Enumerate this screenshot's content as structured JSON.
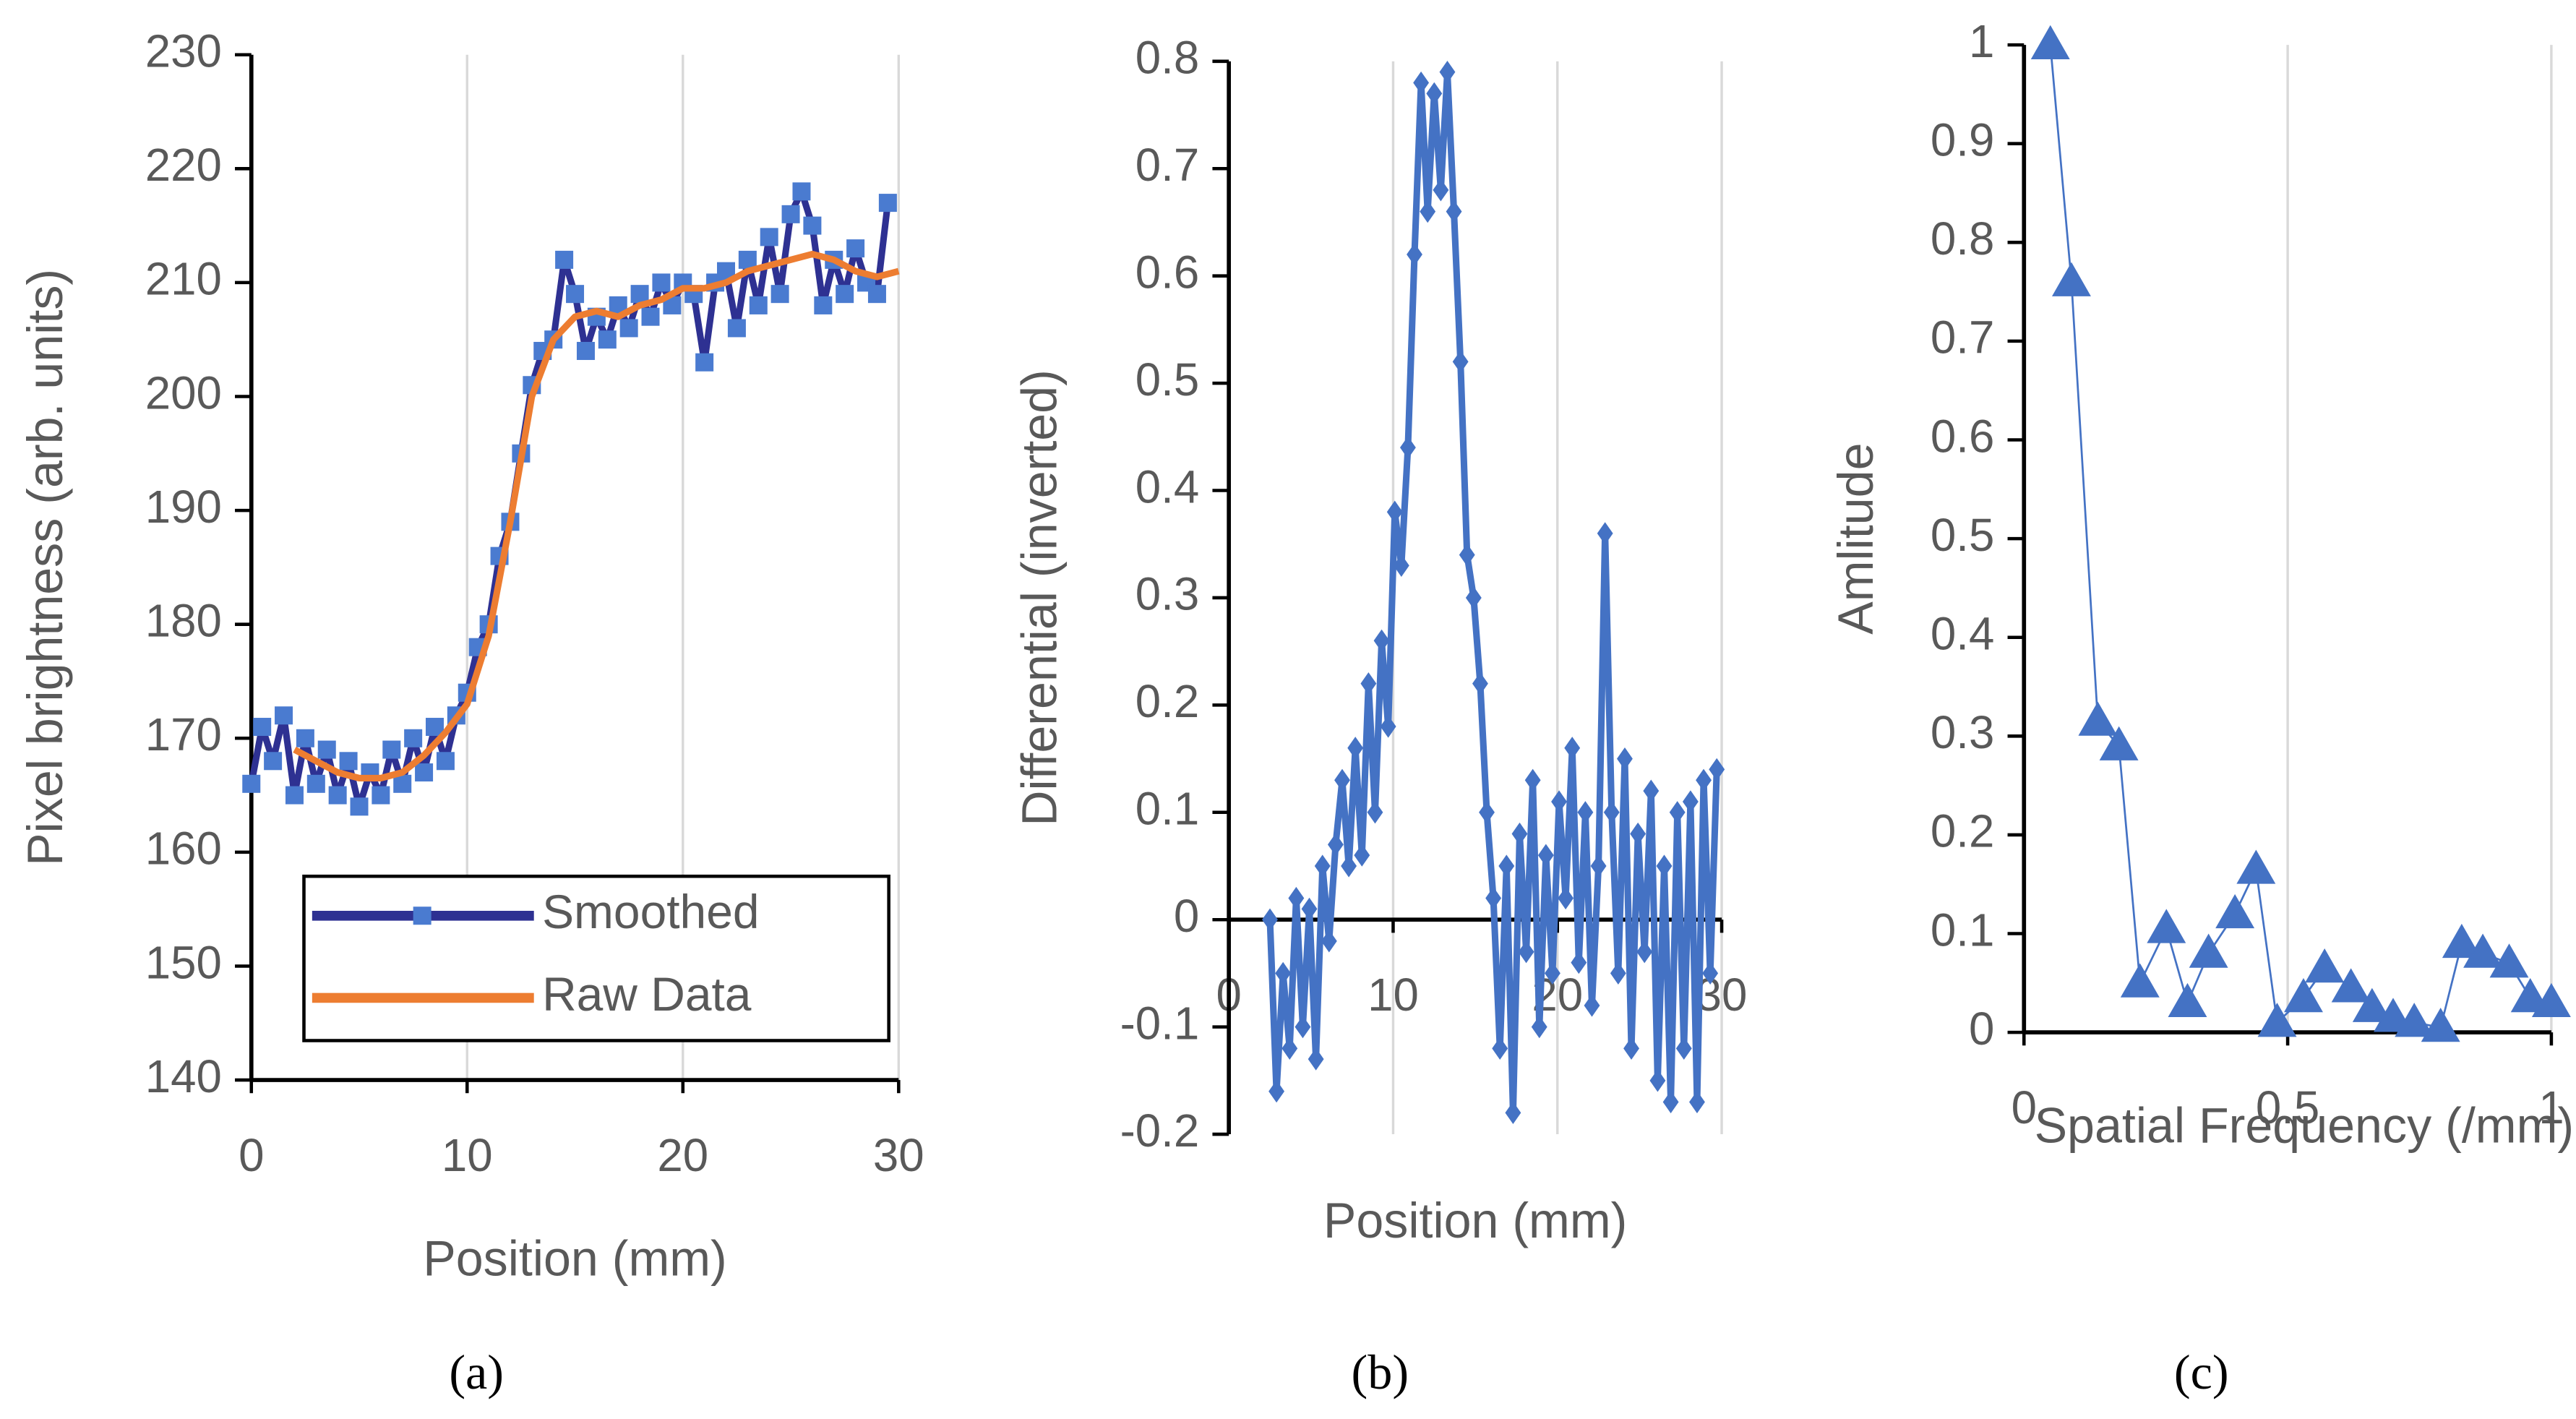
{
  "chart_data": [
    {
      "type": "line",
      "caption": "(a)",
      "xlabel": "Position (mm)",
      "ylabel": "Pixel brightness (arb. units)",
      "xlim": [
        0,
        30
      ],
      "xticks": [
        0,
        10,
        20,
        30
      ],
      "ylim": [
        140,
        230
      ],
      "yticks": [
        140,
        150,
        160,
        170,
        180,
        190,
        200,
        210,
        220,
        230
      ],
      "grid": "x",
      "legend": "lower right",
      "series": [
        {
          "name": "Smoothed",
          "color": "#2e3192",
          "marker_color": "#4a7bd0",
          "marker": "square",
          "x": [
            0,
            0.5,
            1,
            1.5,
            2,
            2.5,
            3,
            3.5,
            4,
            4.5,
            5,
            5.5,
            6,
            6.5,
            7,
            7.5,
            8,
            8.5,
            9,
            9.5,
            10,
            10.5,
            11,
            11.5,
            12,
            12.5,
            13,
            13.5,
            14,
            14.5,
            15,
            15.5,
            16,
            16.5,
            17,
            17.5,
            18,
            18.5,
            19,
            19.5,
            20,
            20.5,
            21,
            21.5,
            22,
            22.5,
            23,
            23.5,
            24,
            24.5,
            25,
            25.5,
            26,
            26.5,
            27,
            27.5,
            28,
            28.5,
            29,
            29.5
          ],
          "values": [
            166,
            171,
            168,
            172,
            165,
            170,
            166,
            169,
            165,
            168,
            164,
            167,
            165,
            169,
            166,
            170,
            167,
            171,
            168,
            172,
            174,
            178,
            180,
            186,
            189,
            195,
            201,
            204,
            205,
            212,
            209,
            204,
            207,
            205,
            208,
            206,
            209,
            207,
            210,
            208,
            210,
            209,
            203,
            210,
            211,
            206,
            212,
            208,
            214,
            209,
            216,
            218,
            215,
            208,
            212,
            209,
            213,
            210,
            209,
            217
          ]
        },
        {
          "name": "Raw Data",
          "color": "#ed7d31",
          "marker": "none",
          "x": [
            2,
            3,
            4,
            5,
            6,
            7,
            8,
            9,
            10,
            11,
            12,
            13,
            14,
            15,
            16,
            17,
            18,
            19,
            20,
            21,
            22,
            23,
            24,
            25,
            26,
            27,
            28,
            29,
            30
          ],
          "values": [
            169,
            168,
            167,
            166.5,
            166.5,
            167,
            168.5,
            170.5,
            173,
            179,
            189,
            200,
            205,
            207,
            207.5,
            207,
            208,
            208.5,
            209.5,
            209.5,
            210,
            211,
            211.5,
            212,
            212.5,
            212,
            211,
            210.5,
            211
          ]
        }
      ]
    },
    {
      "type": "line",
      "caption": "(b)",
      "xlabel": "Position (mm)",
      "ylabel": "Differential (inverted)",
      "xlim": [
        0,
        30
      ],
      "xticks": [
        0,
        10,
        20,
        30
      ],
      "ylim": [
        -0.2,
        0.8
      ],
      "yticks": [
        -0.2,
        -0.1,
        0,
        0.1,
        0.2,
        0.3,
        0.4,
        0.5,
        0.6,
        0.7,
        0.8
      ],
      "grid": "x",
      "series": [
        {
          "color": "#4472c4",
          "marker_color": "#4472c4",
          "marker": "diamond",
          "x": [
            2.5,
            2.9,
            3.3,
            3.7,
            4.1,
            4.5,
            4.9,
            5.3,
            5.7,
            6.1,
            6.5,
            6.9,
            7.3,
            7.7,
            8.1,
            8.5,
            8.9,
            9.3,
            9.7,
            10.1,
            10.5,
            10.9,
            11.3,
            11.7,
            12.1,
            12.5,
            12.9,
            13.3,
            13.7,
            14.1,
            14.5,
            14.9,
            15.3,
            15.7,
            16.1,
            16.5,
            16.9,
            17.3,
            17.7,
            18.1,
            18.5,
            18.9,
            19.3,
            19.7,
            20.1,
            20.5,
            20.9,
            21.3,
            21.7,
            22.1,
            22.5,
            22.9,
            23.3,
            23.7,
            24.1,
            24.5,
            24.9,
            25.3,
            25.7,
            26.1,
            26.5,
            26.9,
            27.3,
            27.7,
            28.1,
            28.5,
            28.9,
            29.3,
            29.7
          ],
          "values": [
            0,
            -0.16,
            -0.05,
            -0.12,
            0.02,
            -0.1,
            0.01,
            -0.13,
            0.05,
            -0.02,
            0.07,
            0.13,
            0.05,
            0.16,
            0.06,
            0.22,
            0.1,
            0.26,
            0.18,
            0.38,
            0.33,
            0.44,
            0.62,
            0.78,
            0.66,
            0.77,
            0.68,
            0.79,
            0.66,
            0.52,
            0.34,
            0.3,
            0.22,
            0.1,
            0.02,
            -0.12,
            0.05,
            -0.18,
            0.08,
            -0.03,
            0.13,
            -0.1,
            0.06,
            -0.05,
            0.11,
            0.02,
            0.16,
            -0.04,
            0.1,
            -0.08,
            0.05,
            0.36,
            0.1,
            -0.05,
            0.15,
            -0.12,
            0.08,
            -0.03,
            0.12,
            -0.15,
            0.05,
            -0.17,
            0.1,
            -0.12,
            0.11,
            -0.17,
            0.13,
            -0.05,
            0.14
          ]
        }
      ]
    },
    {
      "type": "line",
      "caption": "(c)",
      "xlabel": "Spatial Frequency (/mm)",
      "ylabel": "Amlitude",
      "xlim": [
        0,
        1
      ],
      "xticks": [
        0,
        0.5,
        1
      ],
      "ylim": [
        0,
        1
      ],
      "yticks": [
        0,
        0.1,
        0.2,
        0.3,
        0.4,
        0.5,
        0.6,
        0.7,
        0.8,
        0.9,
        1
      ],
      "grid": "x",
      "series": [
        {
          "color": "#4472c4",
          "marker_color": "#4472c4",
          "marker": "triangle",
          "x": [
            0.05,
            0.09,
            0.14,
            0.18,
            0.22,
            0.27,
            0.31,
            0.35,
            0.4,
            0.44,
            0.48,
            0.53,
            0.57,
            0.62,
            0.66,
            0.7,
            0.74,
            0.79,
            0.83,
            0.87,
            0.92,
            0.96,
            1
          ],
          "values": [
            1,
            0.76,
            0.315,
            0.29,
            0.05,
            0.105,
            0.03,
            0.08,
            0.12,
            0.165,
            0.01,
            0.035,
            0.065,
            0.045,
            0.025,
            0.015,
            0.01,
            0.005,
            0.09,
            0.08,
            0.07,
            0.035,
            0.03
          ]
        }
      ]
    }
  ]
}
